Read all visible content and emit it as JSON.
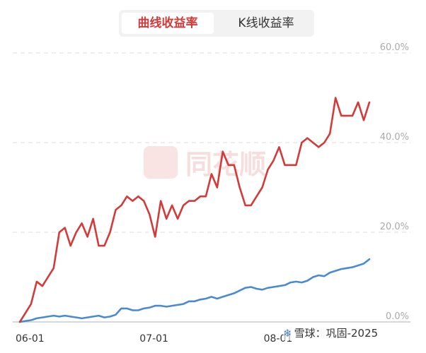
{
  "tabs": [
    {
      "label": "曲线收益率",
      "active": true
    },
    {
      "label": "K线收益率",
      "active": false
    }
  ],
  "watermark": {
    "text": "同花顺"
  },
  "credit": {
    "text": "雪球：巩固-2025"
  },
  "colors": {
    "series_red": "#d33a3a",
    "series_blue": "#4a8ad0",
    "accent": "#d33a3a"
  },
  "chart_data": {
    "type": "line",
    "x_tick_labels": [
      "06-01",
      "07-01",
      "08-01"
    ],
    "x_tick_index": [
      0,
      22,
      44
    ],
    "y_tick_labels": [
      "60.0%",
      "40.0%",
      "20.0%",
      "0.0%"
    ],
    "ylim": [
      0,
      60
    ],
    "grid": true,
    "series": [
      {
        "color": "#d33a3a",
        "values": [
          0,
          2,
          4,
          9,
          8,
          10,
          12,
          20,
          21,
          17,
          20,
          22,
          19,
          23,
          17,
          17,
          20,
          25,
          26,
          28,
          27,
          28,
          27,
          24,
          19,
          27,
          23,
          26,
          23,
          26,
          27,
          27,
          28,
          28,
          33,
          30,
          38,
          35,
          35,
          30,
          26,
          26,
          28,
          30,
          34,
          36,
          39,
          35,
          35,
          35,
          40,
          41,
          40,
          39,
          40,
          42,
          50,
          46,
          46,
          46,
          49,
          45,
          49
        ]
      },
      {
        "color": "#4a8ad0",
        "values": [
          0,
          0.2,
          0.4,
          0.8,
          1,
          1.2,
          1.4,
          1.2,
          1.4,
          1.2,
          1,
          0.8,
          1,
          1.2,
          1.4,
          1,
          1.2,
          1.6,
          3,
          3,
          2.6,
          2.6,
          3,
          3.2,
          3.6,
          3.6,
          3.4,
          3.6,
          3.8,
          4,
          4.6,
          4.6,
          5,
          5.2,
          5.6,
          5.2,
          5.6,
          6,
          6.4,
          7,
          7.6,
          7.8,
          7.4,
          7.2,
          7.6,
          7.8,
          8,
          8.2,
          8.8,
          9,
          8.8,
          9.2,
          10,
          10.4,
          10.2,
          11,
          11.4,
          11.8,
          12,
          12.2,
          12.6,
          13,
          14
        ]
      }
    ]
  }
}
